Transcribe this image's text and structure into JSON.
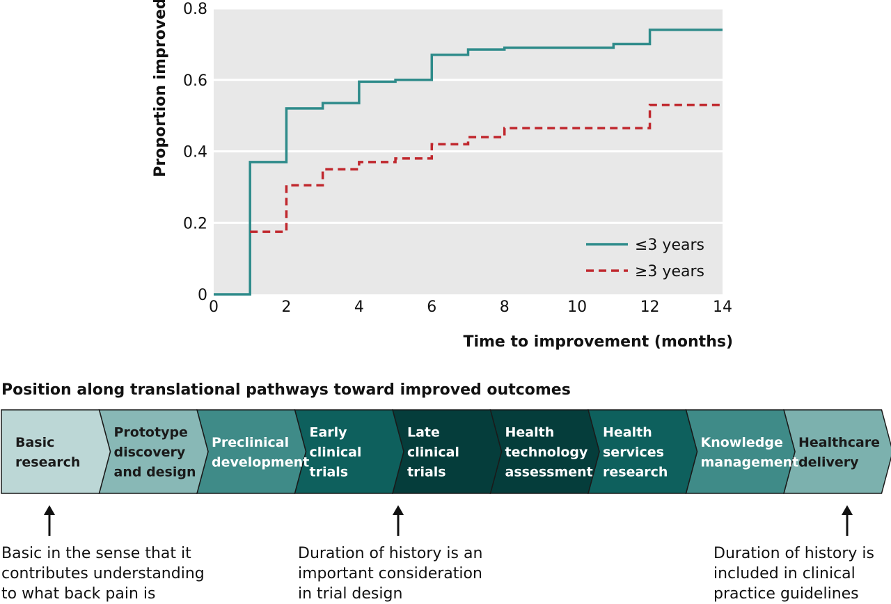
{
  "chart_data": {
    "type": "line",
    "xlabel": "Time to improvement (months)",
    "ylabel": "Proportion improved",
    "xlim": [
      0,
      14
    ],
    "ylim": [
      0,
      0.8
    ],
    "xticks": [
      "0",
      "2",
      "4",
      "6",
      "8",
      "10",
      "12",
      "14"
    ],
    "yticks": [
      "0",
      "0.2",
      "0.4",
      "0.6",
      "0.8"
    ],
    "grid": "horizontal",
    "legend_position": "bottom-right",
    "step": true,
    "series": [
      {
        "name": "≤3 years",
        "color": "#2e8b8a",
        "style": "solid",
        "x": [
          0,
          1,
          2,
          3,
          4,
          5,
          6,
          7,
          8,
          11,
          12,
          14
        ],
        "y": [
          0,
          0.37,
          0.52,
          0.535,
          0.595,
          0.6,
          0.67,
          0.685,
          0.69,
          0.7,
          0.74,
          0.74
        ]
      },
      {
        "name": "≥3 years",
        "color": "#c0272d",
        "style": "dashed",
        "x": [
          1,
          2,
          3,
          4,
          5,
          6,
          7,
          8,
          12,
          14
        ],
        "y": [
          0.175,
          0.305,
          0.35,
          0.37,
          0.38,
          0.42,
          0.44,
          0.465,
          0.53,
          0.53
        ]
      }
    ]
  },
  "pathway": {
    "title": "Position along translational pathways toward improved outcomes",
    "stages": [
      {
        "lines": [
          "Basic",
          "research"
        ],
        "fill": "#bcd7d6",
        "text_color": "#1a1a1a"
      },
      {
        "lines": [
          "Prototype",
          "discovery",
          "and design"
        ],
        "fill": "#88b8b6",
        "text_color": "#1a1a1a"
      },
      {
        "lines": [
          "Preclinical",
          "development"
        ],
        "fill": "#3f8b88",
        "text_color": "#ffffff"
      },
      {
        "lines": [
          "Early",
          "clinical",
          "trials"
        ],
        "fill": "#0e605d",
        "text_color": "#ffffff"
      },
      {
        "lines": [
          "Late",
          "clinical",
          "trials"
        ],
        "fill": "#053d3b",
        "text_color": "#ffffff"
      },
      {
        "lines": [
          "Health",
          "technology",
          "assessment"
        ],
        "fill": "#053d3b",
        "text_color": "#ffffff"
      },
      {
        "lines": [
          "Health",
          "services",
          "research"
        ],
        "fill": "#0e605d",
        "text_color": "#ffffff"
      },
      {
        "lines": [
          "Knowledge",
          "management"
        ],
        "fill": "#3f8b88",
        "text_color": "#ffffff"
      },
      {
        "lines": [
          "Healthcare",
          "delivery"
        ],
        "fill": "#7cb1ae",
        "text_color": "#1a1a1a"
      }
    ]
  },
  "notes": {
    "basic": [
      "Basic in the sense that it",
      "contributes understanding",
      "to what back pain is"
    ],
    "trial": [
      "Duration of history is an",
      "important consideration",
      "in trial design"
    ],
    "guideline": [
      "Duration of history is",
      "included in clinical",
      "practice guidelines"
    ]
  }
}
